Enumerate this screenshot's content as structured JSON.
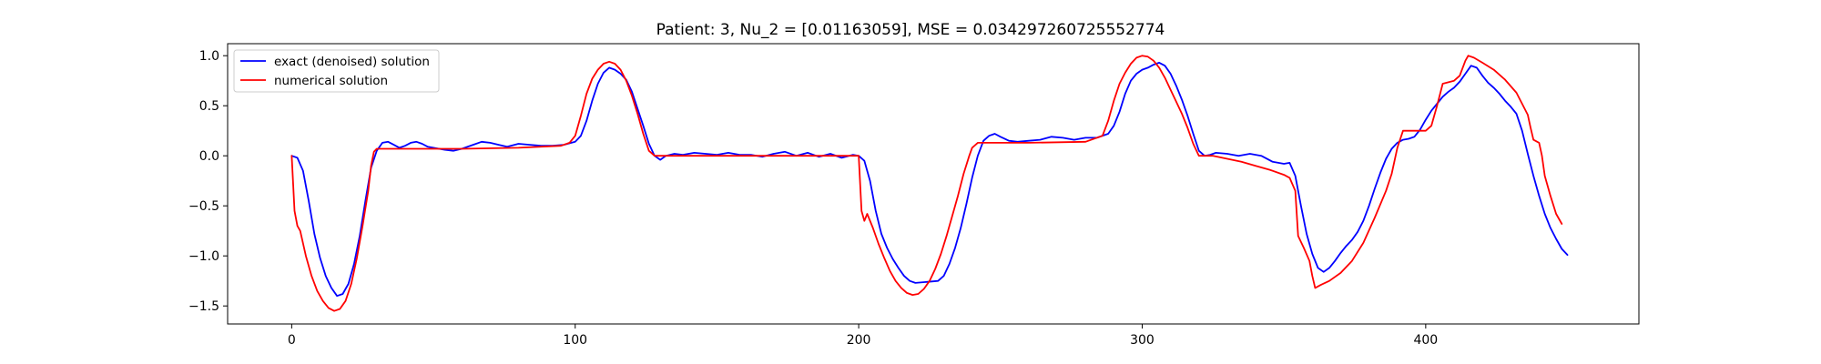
{
  "chart_data": {
    "type": "line",
    "title": "Patient: 3, Nu_2 = [0.01163059], MSE = 0.034297260725552774",
    "xlabel": "",
    "ylabel": "",
    "xlim": [
      -22.6,
      475.2
    ],
    "ylim": [
      -1.68,
      1.12
    ],
    "xticks": [
      0,
      100,
      200,
      300,
      400
    ],
    "yticks": [
      -1.5,
      -1.0,
      -0.5,
      0.0,
      0.5,
      1.0
    ],
    "xtick_labels": [
      "0",
      "100",
      "200",
      "300",
      "400"
    ],
    "ytick_labels": [
      "−1.5",
      "−1.0",
      "−0.5",
      "0.0",
      "0.5",
      "1.0"
    ],
    "grid": false,
    "legend": "upper-left",
    "series": [
      {
        "name": "exact (denoised) solution",
        "color": "#0000ff",
        "points": [
          [
            0,
            0
          ],
          [
            2,
            -0.02
          ],
          [
            4,
            -0.15
          ],
          [
            6,
            -0.45
          ],
          [
            8,
            -0.78
          ],
          [
            10,
            -1.02
          ],
          [
            12,
            -1.2
          ],
          [
            14,
            -1.32
          ],
          [
            16,
            -1.4
          ],
          [
            18,
            -1.38
          ],
          [
            20,
            -1.28
          ],
          [
            22,
            -1.08
          ],
          [
            24,
            -0.8
          ],
          [
            26,
            -0.45
          ],
          [
            28,
            -0.12
          ],
          [
            30,
            0.05
          ],
          [
            32,
            0.13
          ],
          [
            34,
            0.14
          ],
          [
            36,
            0.11
          ],
          [
            38,
            0.08
          ],
          [
            40,
            0.1
          ],
          [
            42,
            0.13
          ],
          [
            44,
            0.14
          ],
          [
            46,
            0.12
          ],
          [
            48,
            0.09
          ],
          [
            50,
            0.08
          ],
          [
            54,
            0.06
          ],
          [
            57,
            0.05
          ],
          [
            60,
            0.07
          ],
          [
            64,
            0.11
          ],
          [
            67,
            0.14
          ],
          [
            70,
            0.13
          ],
          [
            73,
            0.11
          ],
          [
            76,
            0.09
          ],
          [
            80,
            0.12
          ],
          [
            84,
            0.11
          ],
          [
            88,
            0.1
          ],
          [
            92,
            0.1
          ],
          [
            96,
            0.11
          ],
          [
            100,
            0.14
          ],
          [
            102,
            0.2
          ],
          [
            104,
            0.35
          ],
          [
            106,
            0.55
          ],
          [
            108,
            0.72
          ],
          [
            110,
            0.83
          ],
          [
            112,
            0.88
          ],
          [
            114,
            0.86
          ],
          [
            116,
            0.82
          ],
          [
            118,
            0.76
          ],
          [
            120,
            0.64
          ],
          [
            122,
            0.47
          ],
          [
            124,
            0.3
          ],
          [
            126,
            0.12
          ],
          [
            128,
            0
          ],
          [
            130,
            -0.04
          ],
          [
            132,
            0
          ],
          [
            135,
            0.02
          ],
          [
            138,
            0.01
          ],
          [
            142,
            0.03
          ],
          [
            146,
            0.02
          ],
          [
            150,
            0.01
          ],
          [
            154,
            0.03
          ],
          [
            158,
            0.01
          ],
          [
            162,
            0.01
          ],
          [
            166,
            -0.01
          ],
          [
            170,
            0.02
          ],
          [
            174,
            0.04
          ],
          [
            178,
            0
          ],
          [
            182,
            0.03
          ],
          [
            186,
            -0.01
          ],
          [
            190,
            0.02
          ],
          [
            194,
            -0.02
          ],
          [
            198,
            0.01
          ],
          [
            200,
            0
          ],
          [
            202,
            -0.05
          ],
          [
            204,
            -0.25
          ],
          [
            206,
            -0.55
          ],
          [
            208,
            -0.78
          ],
          [
            210,
            -0.92
          ],
          [
            212,
            -1.03
          ],
          [
            214,
            -1.12
          ],
          [
            216,
            -1.2
          ],
          [
            218,
            -1.25
          ],
          [
            220,
            -1.27
          ],
          [
            224,
            -1.26
          ],
          [
            228,
            -1.25
          ],
          [
            230,
            -1.2
          ],
          [
            232,
            -1.08
          ],
          [
            234,
            -0.92
          ],
          [
            236,
            -0.72
          ],
          [
            238,
            -0.48
          ],
          [
            240,
            -0.22
          ],
          [
            242,
            0
          ],
          [
            244,
            0.15
          ],
          [
            246,
            0.2
          ],
          [
            248,
            0.22
          ],
          [
            250,
            0.19
          ],
          [
            253,
            0.15
          ],
          [
            256,
            0.14
          ],
          [
            260,
            0.15
          ],
          [
            264,
            0.16
          ],
          [
            268,
            0.19
          ],
          [
            272,
            0.18
          ],
          [
            276,
            0.16
          ],
          [
            280,
            0.18
          ],
          [
            284,
            0.18
          ],
          [
            288,
            0.22
          ],
          [
            290,
            0.3
          ],
          [
            292,
            0.44
          ],
          [
            294,
            0.62
          ],
          [
            296,
            0.75
          ],
          [
            298,
            0.82
          ],
          [
            300,
            0.86
          ],
          [
            302,
            0.88
          ],
          [
            304,
            0.91
          ],
          [
            306,
            0.93
          ],
          [
            308,
            0.9
          ],
          [
            310,
            0.82
          ],
          [
            312,
            0.7
          ],
          [
            314,
            0.56
          ],
          [
            316,
            0.4
          ],
          [
            318,
            0.22
          ],
          [
            320,
            0.05
          ],
          [
            322,
            0
          ],
          [
            324,
            0.01
          ],
          [
            326,
            0.03
          ],
          [
            330,
            0.02
          ],
          [
            334,
            0
          ],
          [
            338,
            0.02
          ],
          [
            342,
            0
          ],
          [
            346,
            -0.06
          ],
          [
            350,
            -0.08
          ],
          [
            352,
            -0.07
          ],
          [
            354,
            -0.2
          ],
          [
            356,
            -0.5
          ],
          [
            358,
            -0.78
          ],
          [
            360,
            -0.98
          ],
          [
            362,
            -1.12
          ],
          [
            364,
            -1.16
          ],
          [
            366,
            -1.12
          ],
          [
            368,
            -1.05
          ],
          [
            370,
            -0.97
          ],
          [
            372,
            -0.9
          ],
          [
            374,
            -0.84
          ],
          [
            376,
            -0.76
          ],
          [
            378,
            -0.65
          ],
          [
            380,
            -0.5
          ],
          [
            382,
            -0.33
          ],
          [
            384,
            -0.17
          ],
          [
            386,
            -0.03
          ],
          [
            388,
            0.07
          ],
          [
            390,
            0.13
          ],
          [
            392,
            0.16
          ],
          [
            394,
            0.17
          ],
          [
            396,
            0.19
          ],
          [
            398,
            0.26
          ],
          [
            400,
            0.36
          ],
          [
            402,
            0.45
          ],
          [
            404,
            0.52
          ],
          [
            406,
            0.59
          ],
          [
            408,
            0.64
          ],
          [
            410,
            0.68
          ],
          [
            412,
            0.74
          ],
          [
            414,
            0.82
          ],
          [
            416,
            0.9
          ],
          [
            418,
            0.88
          ],
          [
            420,
            0.8
          ],
          [
            422,
            0.73
          ],
          [
            424,
            0.68
          ],
          [
            426,
            0.62
          ],
          [
            428,
            0.55
          ],
          [
            430,
            0.49
          ],
          [
            432,
            0.42
          ],
          [
            434,
            0.25
          ],
          [
            436,
            0.02
          ],
          [
            438,
            -0.2
          ],
          [
            440,
            -0.4
          ],
          [
            442,
            -0.58
          ],
          [
            444,
            -0.72
          ],
          [
            446,
            -0.83
          ],
          [
            448,
            -0.93
          ],
          [
            450,
            -0.99
          ]
        ]
      },
      {
        "name": "numerical solution",
        "color": "#ff0000",
        "points": [
          [
            0,
            0
          ],
          [
            1,
            -0.55
          ],
          [
            2,
            -0.7
          ],
          [
            3,
            -0.75
          ],
          [
            5,
            -1
          ],
          [
            7,
            -1.2
          ],
          [
            9,
            -1.35
          ],
          [
            11,
            -1.45
          ],
          [
            13,
            -1.52
          ],
          [
            15,
            -1.55
          ],
          [
            17,
            -1.53
          ],
          [
            19,
            -1.45
          ],
          [
            21,
            -1.28
          ],
          [
            23,
            -1.02
          ],
          [
            25,
            -0.7
          ],
          [
            27,
            -0.35
          ],
          [
            28,
            -0.1
          ],
          [
            29,
            0.04
          ],
          [
            30,
            0.07
          ],
          [
            40,
            0.07
          ],
          [
            60,
            0.07
          ],
          [
            80,
            0.08
          ],
          [
            95,
            0.1
          ],
          [
            98,
            0.13
          ],
          [
            100,
            0.2
          ],
          [
            102,
            0.4
          ],
          [
            104,
            0.62
          ],
          [
            106,
            0.77
          ],
          [
            108,
            0.86
          ],
          [
            110,
            0.92
          ],
          [
            112,
            0.94
          ],
          [
            114,
            0.92
          ],
          [
            116,
            0.86
          ],
          [
            118,
            0.75
          ],
          [
            120,
            0.6
          ],
          [
            122,
            0.42
          ],
          [
            124,
            0.22
          ],
          [
            126,
            0.05
          ],
          [
            128,
            0
          ],
          [
            150,
            0
          ],
          [
            199,
            0
          ],
          [
            200,
            0
          ],
          [
            201,
            -0.55
          ],
          [
            202,
            -0.65
          ],
          [
            203,
            -0.58
          ],
          [
            205,
            -0.72
          ],
          [
            207,
            -0.88
          ],
          [
            209,
            -1.02
          ],
          [
            211,
            -1.15
          ],
          [
            213,
            -1.25
          ],
          [
            215,
            -1.32
          ],
          [
            217,
            -1.37
          ],
          [
            219,
            -1.39
          ],
          [
            221,
            -1.38
          ],
          [
            223,
            -1.33
          ],
          [
            225,
            -1.25
          ],
          [
            227,
            -1.13
          ],
          [
            229,
            -0.98
          ],
          [
            231,
            -0.8
          ],
          [
            233,
            -0.6
          ],
          [
            235,
            -0.4
          ],
          [
            237,
            -0.18
          ],
          [
            239,
            0
          ],
          [
            240,
            0.08
          ],
          [
            242,
            0.13
          ],
          [
            260,
            0.13
          ],
          [
            280,
            0.14
          ],
          [
            286,
            0.2
          ],
          [
            288,
            0.35
          ],
          [
            290,
            0.55
          ],
          [
            292,
            0.72
          ],
          [
            294,
            0.83
          ],
          [
            296,
            0.92
          ],
          [
            298,
            0.98
          ],
          [
            300,
            1
          ],
          [
            302,
            0.99
          ],
          [
            304,
            0.95
          ],
          [
            306,
            0.88
          ],
          [
            308,
            0.78
          ],
          [
            310,
            0.66
          ],
          [
            312,
            0.54
          ],
          [
            314,
            0.42
          ],
          [
            316,
            0.28
          ],
          [
            318,
            0.12
          ],
          [
            320,
            0
          ],
          [
            325,
            0
          ],
          [
            330,
            -0.03
          ],
          [
            335,
            -0.06
          ],
          [
            340,
            -0.1
          ],
          [
            345,
            -0.14
          ],
          [
            350,
            -0.19
          ],
          [
            352,
            -0.22
          ],
          [
            354,
            -0.35
          ],
          [
            355,
            -0.8
          ],
          [
            357,
            -0.92
          ],
          [
            359,
            -1.05
          ],
          [
            360,
            -1.2
          ],
          [
            361,
            -1.32
          ],
          [
            363,
            -1.29
          ],
          [
            366,
            -1.25
          ],
          [
            370,
            -1.17
          ],
          [
            374,
            -1.05
          ],
          [
            378,
            -0.87
          ],
          [
            382,
            -0.62
          ],
          [
            386,
            -0.35
          ],
          [
            388,
            -0.18
          ],
          [
            390,
            0.08
          ],
          [
            392,
            0.25
          ],
          [
            400,
            0.25
          ],
          [
            402,
            0.3
          ],
          [
            404,
            0.5
          ],
          [
            406,
            0.72
          ],
          [
            410,
            0.75
          ],
          [
            412,
            0.8
          ],
          [
            414,
            0.95
          ],
          [
            415,
            1
          ],
          [
            417,
            0.98
          ],
          [
            420,
            0.93
          ],
          [
            424,
            0.86
          ],
          [
            428,
            0.76
          ],
          [
            432,
            0.63
          ],
          [
            434,
            0.52
          ],
          [
            436,
            0.41
          ],
          [
            437,
            0.28
          ],
          [
            438,
            0.16
          ],
          [
            440,
            0.13
          ],
          [
            441,
            0
          ],
          [
            442,
            -0.2
          ],
          [
            444,
            -0.4
          ],
          [
            446,
            -0.58
          ],
          [
            448,
            -0.68
          ]
        ]
      }
    ]
  }
}
